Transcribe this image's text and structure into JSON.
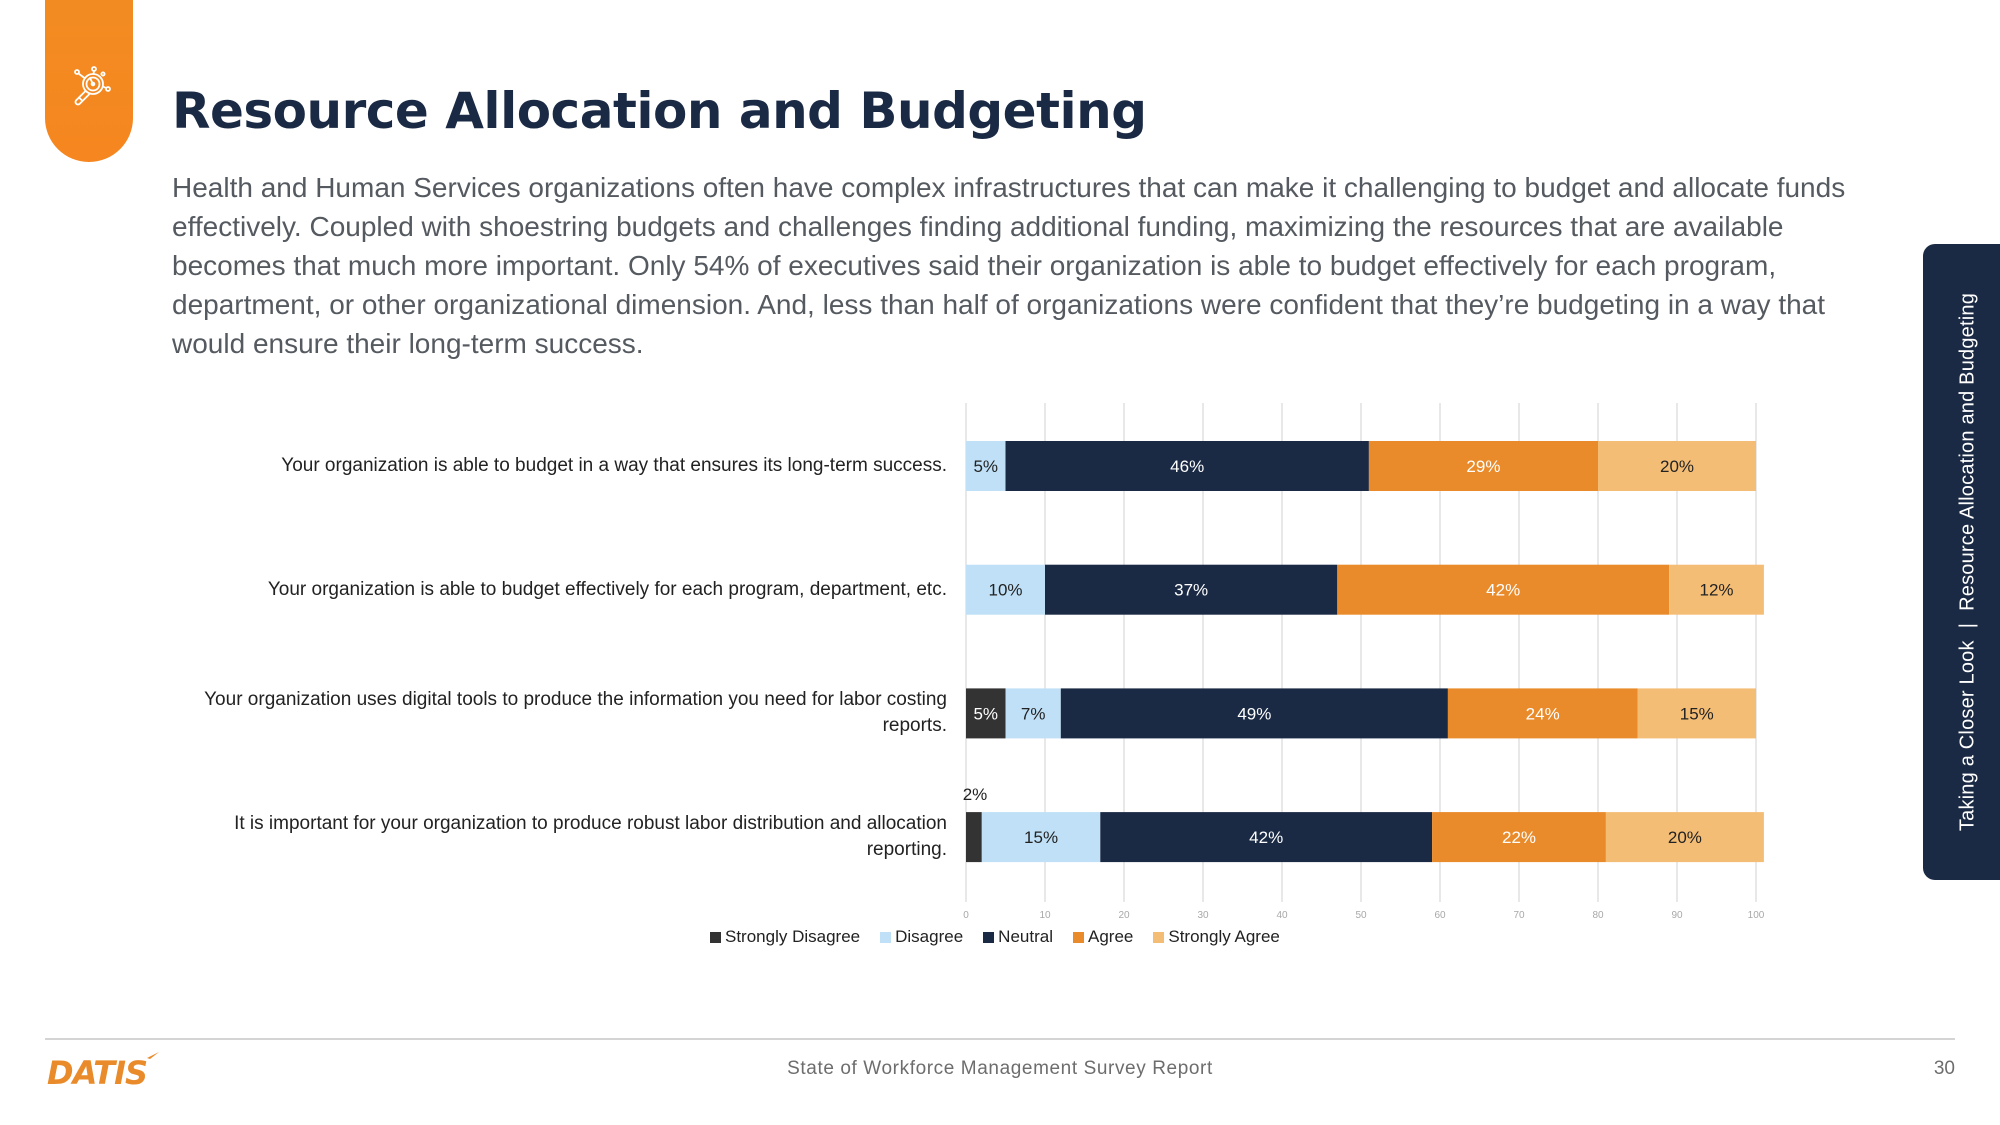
{
  "header": {
    "section_icon": "magnifier-gauge-icon",
    "title": "Resource Allocation and Budgeting",
    "intro": "Health and Human Services organizations often have complex infrastructures that can make it challenging to budget and allocate funds effectively. Coupled with shoestring budgets and challenges finding additional funding, maximizing the resources that are available becomes that much more important. Only 54% of executives said their organization is able to budget effectively for each program, department, or other organizational dimension. And, less than half of organizations were confident that they’re budgeting in a way that would ensure their long-term success."
  },
  "side_tab": {
    "section": "Taking a Closer Look",
    "separator": "|",
    "topic": "Resource Allocation and Budgeting"
  },
  "colors": {
    "accent_orange": "#F58A1F",
    "navy": "#1B2A44",
    "strongly_disagree": "#333333",
    "disagree": "#BFE0F6",
    "neutral": "#1B2A44",
    "agree": "#E98B2A",
    "strongly_agree": "#F4BD76"
  },
  "chart_data": {
    "type": "bar",
    "orientation": "horizontal",
    "stacked": true,
    "title": "",
    "xlabel": "",
    "ylabel": "",
    "xlim": [
      0,
      100
    ],
    "xticks": [
      0,
      10,
      20,
      30,
      40,
      50,
      60,
      70,
      80,
      90,
      100
    ],
    "grid": true,
    "legend_position": "bottom",
    "categories": [
      "Your organization is able to budget in a way that ensures its long-term success.",
      "Your organization is able to budget effectively for each program, department, etc.",
      "Your organization uses digital tools to produce the information you need for labor costing reports.",
      "It is important for your organization to produce robust labor distribution and allocation reporting."
    ],
    "series": [
      {
        "name": "Strongly Disagree",
        "color": "#333333",
        "label_color": "#ffffff",
        "values": [
          0,
          0,
          5,
          2
        ]
      },
      {
        "name": "Disagree",
        "color": "#BFE0F6",
        "label_color": "#222222",
        "values": [
          5,
          10,
          7,
          15
        ]
      },
      {
        "name": "Neutral",
        "color": "#1B2A44",
        "label_color": "#ffffff",
        "values": [
          46,
          37,
          49,
          42
        ]
      },
      {
        "name": "Agree",
        "color": "#E98B2A",
        "label_color": "#ffffff",
        "values": [
          29,
          42,
          24,
          22
        ]
      },
      {
        "name": "Strongly Agree",
        "color": "#F4BD76",
        "label_color": "#222222",
        "values": [
          20,
          12,
          15,
          20
        ]
      }
    ],
    "data_labels": [
      [
        "",
        "5%",
        "46%",
        "29%",
        "20%"
      ],
      [
        "",
        "10%",
        "37%",
        "42%",
        "12%"
      ],
      [
        "5%",
        "7%",
        "49%",
        "24%",
        "15%"
      ],
      [
        "2%",
        "15%",
        "42%",
        "22%",
        "20%"
      ]
    ]
  },
  "footer": {
    "logo_text": "DATIS",
    "report_title": "State of Workforce Management Survey Report",
    "page_number": "30"
  }
}
